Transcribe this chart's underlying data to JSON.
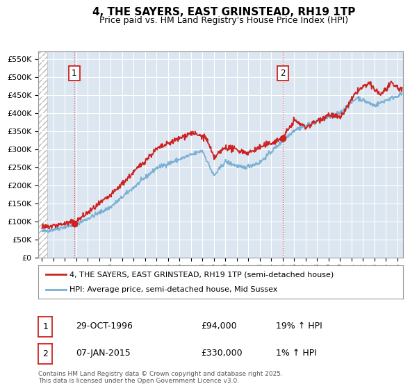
{
  "title": "4, THE SAYERS, EAST GRINSTEAD, RH19 1TP",
  "subtitle": "Price paid vs. HM Land Registry's House Price Index (HPI)",
  "ylabel_ticks": [
    "£0",
    "£50K",
    "£100K",
    "£150K",
    "£200K",
    "£250K",
    "£300K",
    "£350K",
    "£400K",
    "£450K",
    "£500K",
    "£550K"
  ],
  "ytick_vals": [
    0,
    50000,
    100000,
    150000,
    200000,
    250000,
    300000,
    350000,
    400000,
    450000,
    500000,
    550000
  ],
  "ylim": [
    0,
    570000
  ],
  "xlim_start": 1993.7,
  "xlim_end": 2025.5,
  "bg_color": "#dce6f1",
  "legend_line1": "4, THE SAYERS, EAST GRINSTEAD, RH19 1TP (semi-detached house)",
  "legend_line2": "HPI: Average price, semi-detached house, Mid Sussex",
  "line1_color": "#cc2222",
  "line2_color": "#7ab0d4",
  "marker1_date": 1996.83,
  "marker1_price": 94000,
  "marker2_date": 2015.03,
  "marker2_price": 330000,
  "annotation1": "1",
  "annotation2": "2",
  "table_row1": [
    "1",
    "29-OCT-1996",
    "£94,000",
    "19% ↑ HPI"
  ],
  "table_row2": [
    "2",
    "07-JAN-2015",
    "£330,000",
    "1% ↑ HPI"
  ],
  "footer": "Contains HM Land Registry data © Crown copyright and database right 2025.\nThis data is licensed under the Open Government Licence v3.0.",
  "xtick_years": [
    1994,
    1995,
    1996,
    1997,
    1998,
    1999,
    2000,
    2001,
    2002,
    2003,
    2004,
    2005,
    2006,
    2007,
    2008,
    2009,
    2010,
    2011,
    2012,
    2013,
    2014,
    2015,
    2016,
    2017,
    2018,
    2019,
    2020,
    2021,
    2022,
    2023,
    2024,
    2025
  ]
}
